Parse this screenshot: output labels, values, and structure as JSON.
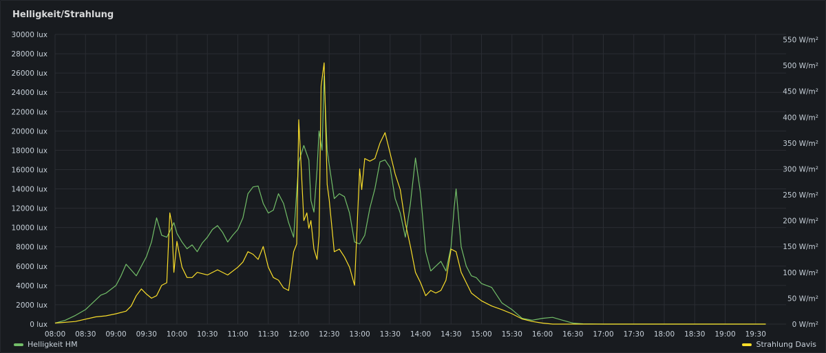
{
  "panel": {
    "title": "Helligkeit/Strahlung"
  },
  "colors": {
    "series1": "#73bf69",
    "series2": "#fade2a",
    "grid": "#2a2d33",
    "background": "#181b1f"
  },
  "chart_data": {
    "type": "line",
    "title": "Helligkeit/Strahlung",
    "x_ticks": [
      "08:00",
      "08:30",
      "09:00",
      "09:30",
      "10:00",
      "10:30",
      "11:00",
      "11:30",
      "12:00",
      "12:30",
      "13:00",
      "13:30",
      "14:00",
      "14:30",
      "15:00",
      "15:30",
      "16:00",
      "16:30",
      "17:00",
      "17:30",
      "18:00",
      "18:30",
      "19:00",
      "19:30"
    ],
    "x_range_hours": [
      8.0,
      20.0
    ],
    "y_left": {
      "ticks": [
        "0 lux",
        "2000 lux",
        "4000 lux",
        "6000 lux",
        "8000 lux",
        "10000 lux",
        "12000 lux",
        "14000 lux",
        "16000 lux",
        "18000 lux",
        "20000 lux",
        "22000 lux",
        "24000 lux",
        "26000 lux",
        "28000 lux",
        "30000 lux"
      ],
      "range": [
        0,
        30000
      ],
      "unit": "lux"
    },
    "y_right": {
      "ticks": [
        "0 W/m²",
        "50 W/m²",
        "100 W/m²",
        "150 W/m²",
        "200 W/m²",
        "250 W/m²",
        "300 W/m²",
        "350 W/m²",
        "400 W/m²",
        "450 W/m²",
        "500 W/m²",
        "550 W/m²"
      ],
      "range": [
        0,
        560
      ],
      "unit": "W/m²"
    },
    "grid": true,
    "legend_position": "bottom",
    "series": [
      {
        "name": "Helligkeit HM",
        "axis": "left",
        "x": [
          "08:00",
          "08:10",
          "08:20",
          "08:30",
          "08:40",
          "08:45",
          "08:50",
          "09:00",
          "09:05",
          "09:10",
          "09:15",
          "09:20",
          "09:25",
          "09:30",
          "09:35",
          "09:40",
          "09:45",
          "09:50",
          "09:53",
          "09:57",
          "10:00",
          "10:05",
          "10:10",
          "10:15",
          "10:20",
          "10:25",
          "10:30",
          "10:35",
          "10:40",
          "10:45",
          "10:50",
          "10:55",
          "11:00",
          "11:05",
          "11:10",
          "11:15",
          "11:20",
          "11:25",
          "11:30",
          "11:35",
          "11:40",
          "11:45",
          "11:50",
          "11:55",
          "12:00",
          "12:05",
          "12:10",
          "12:12",
          "12:15",
          "12:18",
          "12:20",
          "12:23",
          "12:25",
          "12:28",
          "12:30",
          "12:35",
          "12:40",
          "12:45",
          "12:50",
          "12:55",
          "13:00",
          "13:05",
          "13:10",
          "13:15",
          "13:20",
          "13:25",
          "13:30",
          "13:35",
          "13:40",
          "13:45",
          "13:50",
          "13:55",
          "14:00",
          "14:05",
          "14:10",
          "14:15",
          "14:20",
          "14:25",
          "14:30",
          "14:33",
          "14:35",
          "14:40",
          "14:45",
          "14:50",
          "14:55",
          "15:00",
          "15:10",
          "15:20",
          "15:30",
          "15:40",
          "15:45",
          "15:50",
          "16:00",
          "16:10",
          "16:20",
          "16:30",
          "16:40",
          "17:00",
          "18:00",
          "19:00",
          "19:40"
        ],
        "values": [
          100,
          400,
          900,
          1500,
          2500,
          3000,
          3200,
          4000,
          5000,
          6200,
          5600,
          5000,
          6000,
          7000,
          8500,
          11000,
          9200,
          9000,
          9600,
          10500,
          9400,
          8500,
          7800,
          8200,
          7500,
          8400,
          9000,
          9800,
          10200,
          9500,
          8500,
          9200,
          9800,
          11000,
          13500,
          14200,
          14300,
          12500,
          11500,
          11800,
          13500,
          12500,
          10500,
          9000,
          16800,
          18500,
          17000,
          12800,
          11600,
          16000,
          20000,
          18000,
          25700,
          18000,
          16500,
          13000,
          13500,
          13200,
          11500,
          8500,
          8300,
          9200,
          12000,
          14000,
          16800,
          17000,
          16200,
          13000,
          11500,
          9000,
          12500,
          17200,
          13500,
          7500,
          5500,
          6000,
          6500,
          5500,
          8000,
          12000,
          14000,
          8000,
          6000,
          5000,
          4800,
          4200,
          3800,
          2200,
          1500,
          600,
          500,
          400,
          600,
          700,
          400,
          100,
          30,
          0,
          0,
          0,
          0
        ]
      },
      {
        "name": "Strahlung Davis",
        "axis": "right",
        "x": [
          "08:00",
          "08:20",
          "08:40",
          "08:50",
          "09:00",
          "09:10",
          "09:15",
          "09:20",
          "09:25",
          "09:30",
          "09:35",
          "09:40",
          "09:45",
          "09:50",
          "09:53",
          "09:55",
          "09:57",
          "10:00",
          "10:05",
          "10:10",
          "10:15",
          "10:20",
          "10:30",
          "10:40",
          "10:50",
          "11:00",
          "11:05",
          "11:10",
          "11:15",
          "11:20",
          "11:25",
          "11:30",
          "11:35",
          "11:40",
          "11:45",
          "11:50",
          "11:55",
          "11:58",
          "12:00",
          "12:02",
          "12:05",
          "12:08",
          "12:10",
          "12:12",
          "12:15",
          "12:18",
          "12:20",
          "12:22",
          "12:25",
          "12:28",
          "12:30",
          "12:35",
          "12:40",
          "12:45",
          "12:50",
          "12:55",
          "13:00",
          "13:02",
          "13:05",
          "13:10",
          "13:15",
          "13:20",
          "13:25",
          "13:30",
          "13:35",
          "13:40",
          "13:45",
          "13:50",
          "13:55",
          "14:00",
          "14:05",
          "14:10",
          "14:15",
          "14:20",
          "14:25",
          "14:30",
          "14:35",
          "14:40",
          "14:45",
          "14:50",
          "15:00",
          "15:10",
          "15:20",
          "15:30",
          "15:40",
          "15:50",
          "16:00",
          "16:10",
          "16:20",
          "16:30",
          "17:00",
          "18:00",
          "19:00",
          "19:40"
        ],
        "values": [
          2,
          5,
          14,
          16,
          20,
          25,
          35,
          55,
          68,
          58,
          50,
          55,
          75,
          80,
          215,
          195,
          100,
          160,
          110,
          90,
          90,
          100,
          95,
          105,
          95,
          110,
          120,
          140,
          135,
          125,
          150,
          110,
          90,
          85,
          70,
          65,
          140,
          155,
          395,
          320,
          200,
          215,
          185,
          200,
          145,
          125,
          170,
          460,
          505,
          270,
          240,
          140,
          145,
          130,
          110,
          75,
          300,
          260,
          320,
          315,
          320,
          350,
          370,
          330,
          290,
          260,
          195,
          150,
          100,
          80,
          55,
          65,
          60,
          65,
          85,
          145,
          140,
          100,
          80,
          60,
          45,
          35,
          28,
          20,
          10,
          5,
          2,
          0,
          0,
          0,
          0,
          0,
          0,
          0
        ]
      }
    ]
  }
}
